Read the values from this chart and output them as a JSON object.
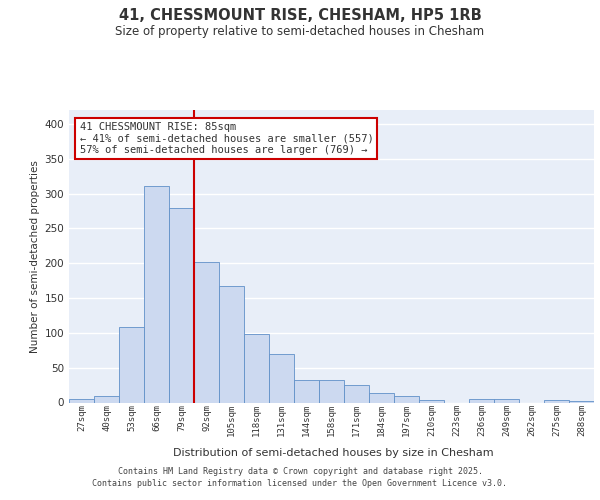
{
  "title_line1": "41, CHESSMOUNT RISE, CHESHAM, HP5 1RB",
  "title_line2": "Size of property relative to semi-detached houses in Chesham",
  "xlabel": "Distribution of semi-detached houses by size in Chesham",
  "ylabel": "Number of semi-detached properties",
  "categories": [
    "27sqm",
    "40sqm",
    "53sqm",
    "66sqm",
    "79sqm",
    "92sqm",
    "105sqm",
    "118sqm",
    "131sqm",
    "144sqm",
    "158sqm",
    "171sqm",
    "184sqm",
    "197sqm",
    "210sqm",
    "223sqm",
    "236sqm",
    "249sqm",
    "262sqm",
    "275sqm",
    "288sqm"
  ],
  "values": [
    5,
    9,
    108,
    311,
    279,
    202,
    167,
    98,
    70,
    32,
    32,
    25,
    13,
    10,
    3,
    0,
    5,
    5,
    0,
    3,
    2
  ],
  "bar_color": "#ccd9f0",
  "bar_edge_color": "#6090c8",
  "vline_x": 4.5,
  "vline_color": "#cc0000",
  "annotation_text": "41 CHESSMOUNT RISE: 85sqm\n← 41% of semi-detached houses are smaller (557)\n57% of semi-detached houses are larger (769) →",
  "annotation_box_facecolor": "#ffffff",
  "annotation_box_edgecolor": "#cc0000",
  "footer_text": "Contains HM Land Registry data © Crown copyright and database right 2025.\nContains public sector information licensed under the Open Government Licence v3.0.",
  "ylim": [
    0,
    420
  ],
  "plot_bgcolor": "#e8eef8",
  "grid_color": "#ffffff",
  "yticks": [
    0,
    50,
    100,
    150,
    200,
    250,
    300,
    350,
    400
  ]
}
